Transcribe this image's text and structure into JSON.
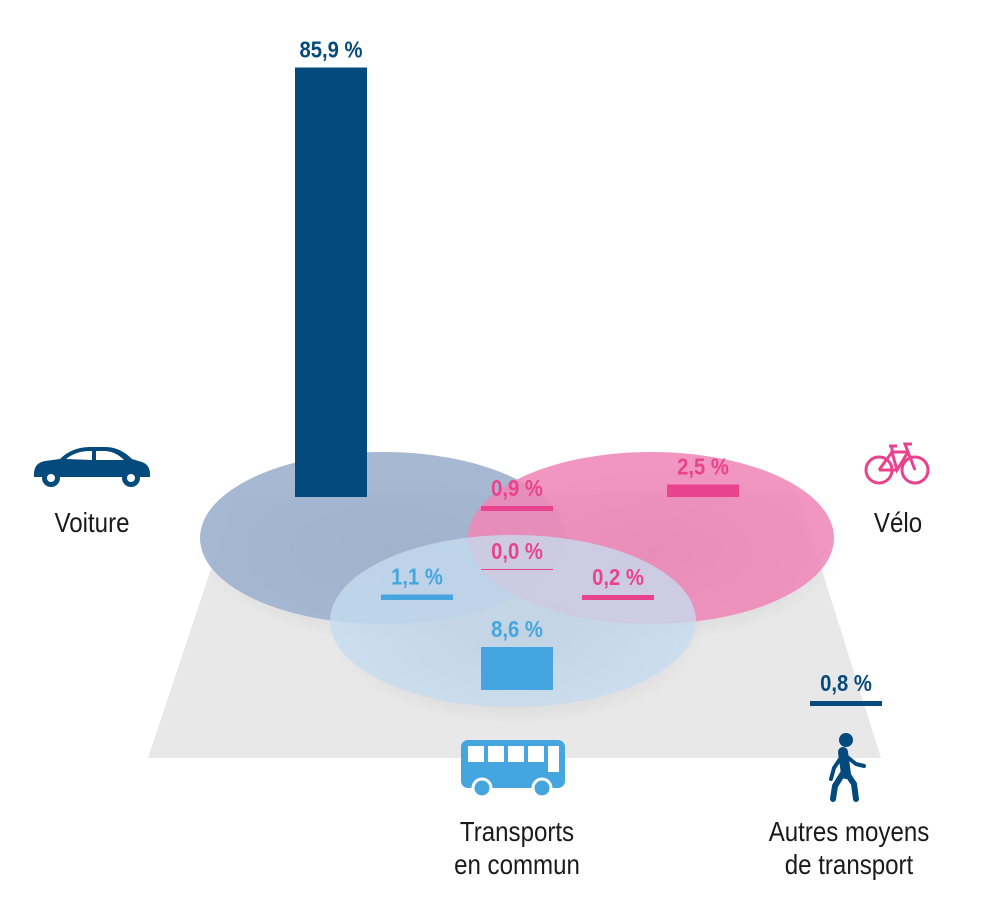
{
  "chart_data": {
    "type": "bar",
    "description_free": true,
    "categories": [
      {
        "key": "voiture",
        "label": "Voiture"
      },
      {
        "key": "velo",
        "label": "Vélo"
      },
      {
        "key": "transports",
        "label_lines": [
          "Transports",
          "en commun"
        ]
      },
      {
        "key": "autres",
        "label_lines": [
          "Autres moyens",
          "de transport"
        ]
      }
    ],
    "series": [
      {
        "sets": [
          "voiture"
        ],
        "value": 85.9,
        "label": "85,9 %",
        "color": "#054a7c"
      },
      {
        "sets": [
          "velo"
        ],
        "value": 2.5,
        "label": "2,5 %",
        "color": "#e9438e"
      },
      {
        "sets": [
          "transports"
        ],
        "value": 8.6,
        "label": "8,6 %",
        "color": "#45a6df"
      },
      {
        "sets": [
          "voiture",
          "velo"
        ],
        "value": 0.9,
        "label": "0,9 %",
        "color": "#e9438e"
      },
      {
        "sets": [
          "voiture",
          "transports"
        ],
        "value": 1.1,
        "label": "1,1 %",
        "color": "#45a6df"
      },
      {
        "sets": [
          "velo",
          "transports"
        ],
        "value": 0.2,
        "label": "0,2 %",
        "color": "#e9438e"
      },
      {
        "sets": [
          "voiture",
          "velo",
          "transports"
        ],
        "value": 0.0,
        "label": "0,0 %",
        "color": "#e9438e"
      },
      {
        "sets": [
          "autres"
        ],
        "value": 0.8,
        "label": "0,8 %",
        "color": "#054a7c"
      }
    ],
    "colors": {
      "voiture": "#054a7c",
      "velo": "#e9438e",
      "transports": "#45a6df",
      "voiture_circle": "#9fb2cf",
      "velo_circle": "#ef88b7",
      "transports_circle": "#c5dcf0",
      "floor": "#e8e8e8"
    },
    "icons": {
      "voiture": "car-icon",
      "velo": "bicycle-icon",
      "transports": "bus-icon",
      "autres": "pedestrian-icon"
    }
  }
}
